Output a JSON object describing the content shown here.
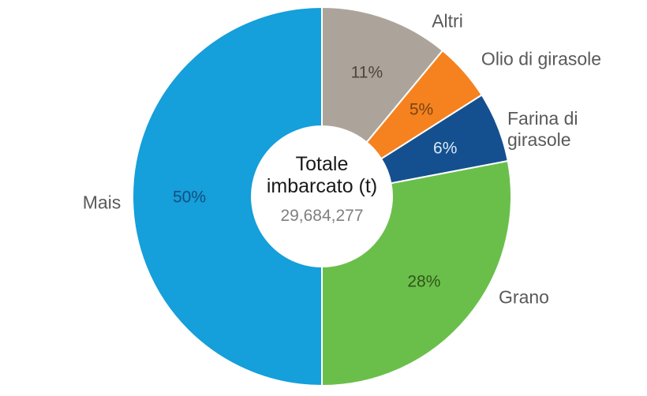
{
  "chart_data": {
    "type": "pie",
    "donut": true,
    "title": "Totale imbarcato (t)",
    "center": {
      "line1": "Totale",
      "line2": "imbarcato (t)",
      "value": "29,684,277",
      "title_color": "#1a1a1a",
      "value_color": "#808080"
    },
    "total_value": 29684277,
    "unit": "t",
    "slices": [
      {
        "label": "Altri",
        "pct": 11,
        "color": "#aca49b",
        "pct_label": "11%",
        "pct_label_color": "#4c453e"
      },
      {
        "label": "Olio di girasole",
        "pct": 5,
        "color": "#f5821f",
        "pct_label": "5%",
        "pct_label_color": "#7a4413"
      },
      {
        "label": "Farina di girasole",
        "pct": 6,
        "color": "#14508f",
        "pct_label": "6%",
        "pct_label_color": "#dbe9f6"
      },
      {
        "label": "Grano",
        "pct": 28,
        "color": "#6abf4b",
        "pct_label": "28%",
        "pct_label_color": "#2f5617"
      },
      {
        "label": "Mais",
        "pct": 50,
        "color": "#159fdb",
        "pct_label": "50%",
        "pct_label_color": "#124f7d"
      }
    ],
    "layout": {
      "start_angle_deg": 0,
      "direction": "clockwise",
      "label_text_color": "#595959",
      "slice_separator_color": "#ffffff",
      "legend_position": "outside-labels",
      "grid": false
    }
  }
}
